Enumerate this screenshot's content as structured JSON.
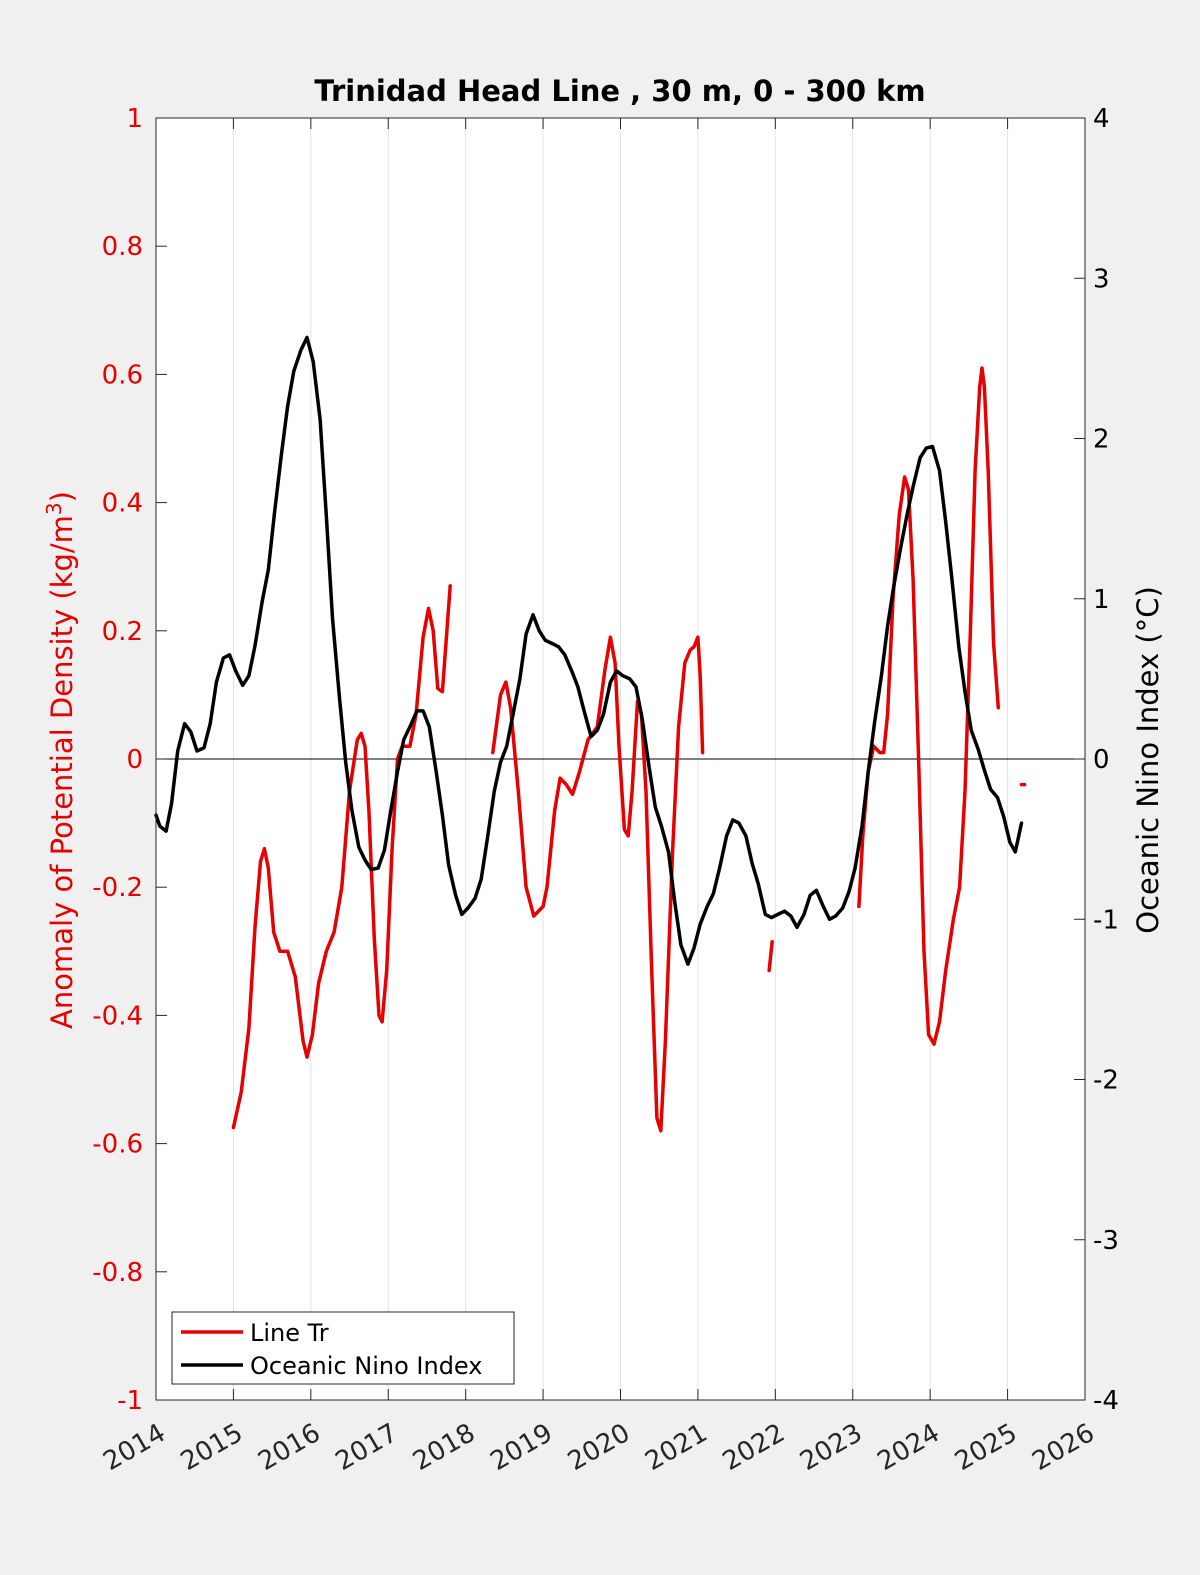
{
  "chart_data": {
    "type": "line",
    "title": "Trinidad Head Line , 30 m, 0 - 300 km",
    "xlabel": "",
    "ylabel_left": "Anomaly of Potential Density (kg/m",
    "ylabel_left_sup": "3",
    "ylabel_left_close": ")",
    "ylabel_right": "Oceanic Nino Index (°C)",
    "xlim": [
      2014,
      2026
    ],
    "ylim_left": [
      -1,
      1
    ],
    "ylim_right": [
      -4,
      4
    ],
    "x_ticks": [
      "2014",
      "2015",
      "2016",
      "2017",
      "2018",
      "2019",
      "2020",
      "2021",
      "2022",
      "2023",
      "2024",
      "2025",
      "2026"
    ],
    "y_left_ticks": [
      "1",
      "0.8",
      "0.6",
      "0.4",
      "0.2",
      "0",
      "-0.2",
      "-0.4",
      "-0.6",
      "-0.8",
      "-1"
    ],
    "y_right_ticks": [
      "4",
      "3",
      "2",
      "1",
      "0",
      "-1",
      "-2",
      "-3",
      "-4"
    ],
    "grid": "vertical",
    "legend_placement": "bottom-left",
    "colors": {
      "line_tr": "#e60000",
      "oni": "#000000",
      "left_axis": "#e60000",
      "right_axis": "#000000"
    },
    "series": [
      {
        "name": "Line Tr",
        "axis": "left",
        "segments": [
          [
            [
              2015.0,
              -0.575
            ],
            [
              2015.1,
              -0.52
            ],
            [
              2015.2,
              -0.42
            ],
            [
              2015.28,
              -0.26
            ],
            [
              2015.35,
              -0.16
            ],
            [
              2015.4,
              -0.14
            ],
            [
              2015.45,
              -0.17
            ],
            [
              2015.52,
              -0.27
            ],
            [
              2015.6,
              -0.3
            ],
            [
              2015.7,
              -0.3
            ],
            [
              2015.8,
              -0.34
            ],
            [
              2015.9,
              -0.44
            ],
            [
              2015.95,
              -0.465
            ],
            [
              2016.02,
              -0.43
            ],
            [
              2016.1,
              -0.35
            ],
            [
              2016.2,
              -0.3
            ],
            [
              2016.3,
              -0.27
            ],
            [
              2016.4,
              -0.2
            ],
            [
              2016.5,
              -0.05
            ],
            [
              2016.6,
              0.03
            ],
            [
              2016.65,
              0.04
            ],
            [
              2016.7,
              0.02
            ],
            [
              2016.75,
              -0.08
            ],
            [
              2016.82,
              -0.28
            ],
            [
              2016.88,
              -0.4
            ],
            [
              2016.92,
              -0.41
            ],
            [
              2016.98,
              -0.33
            ],
            [
              2017.05,
              -0.14
            ],
            [
              2017.12,
              0.0
            ],
            [
              2017.18,
              0.02
            ],
            [
              2017.28,
              0.02
            ],
            [
              2017.36,
              0.07
            ],
            [
              2017.45,
              0.19
            ],
            [
              2017.52,
              0.235
            ],
            [
              2017.58,
              0.2
            ],
            [
              2017.64,
              0.11
            ],
            [
              2017.7,
              0.105
            ],
            [
              2017.8,
              0.27
            ]
          ],
          [
            [
              2018.35,
              0.01
            ],
            [
              2018.45,
              0.1
            ],
            [
              2018.52,
              0.12
            ],
            [
              2018.58,
              0.08
            ],
            [
              2018.68,
              -0.05
            ],
            [
              2018.78,
              -0.2
            ],
            [
              2018.88,
              -0.245
            ],
            [
              2019.0,
              -0.23
            ],
            [
              2019.05,
              -0.2
            ],
            [
              2019.15,
              -0.08
            ],
            [
              2019.22,
              -0.03
            ],
            [
              2019.3,
              -0.04
            ],
            [
              2019.38,
              -0.055
            ],
            [
              2019.47,
              -0.02
            ],
            [
              2019.58,
              0.03
            ],
            [
              2019.7,
              0.05
            ],
            [
              2019.8,
              0.14
            ],
            [
              2019.87,
              0.19
            ],
            [
              2019.93,
              0.15
            ],
            [
              2019.98,
              0.02
            ],
            [
              2020.05,
              -0.11
            ],
            [
              2020.1,
              -0.12
            ],
            [
              2020.15,
              -0.05
            ],
            [
              2020.22,
              0.09
            ],
            [
              2020.27,
              0.07
            ],
            [
              2020.33,
              -0.05
            ],
            [
              2020.4,
              -0.32
            ],
            [
              2020.47,
              -0.56
            ],
            [
              2020.52,
              -0.58
            ],
            [
              2020.58,
              -0.44
            ],
            [
              2020.67,
              -0.15
            ],
            [
              2020.75,
              0.05
            ],
            [
              2020.83,
              0.15
            ],
            [
              2020.9,
              0.17
            ],
            [
              2020.95,
              0.175
            ],
            [
              2021.0,
              0.19
            ],
            [
              2021.03,
              0.13
            ],
            [
              2021.06,
              0.01
            ]
          ],
          [
            [
              2021.92,
              -0.33
            ],
            [
              2021.96,
              -0.285
            ]
          ],
          [
            [
              2023.08,
              -0.23
            ],
            [
              2023.13,
              -0.12
            ],
            [
              2023.2,
              -0.02
            ],
            [
              2023.27,
              0.02
            ],
            [
              2023.35,
              0.01
            ],
            [
              2023.4,
              0.01
            ],
            [
              2023.45,
              0.07
            ],
            [
              2023.52,
              0.25
            ],
            [
              2023.6,
              0.38
            ],
            [
              2023.67,
              0.44
            ],
            [
              2023.72,
              0.42
            ],
            [
              2023.78,
              0.28
            ],
            [
              2023.85,
              0.0
            ],
            [
              2023.92,
              -0.3
            ],
            [
              2023.98,
              -0.43
            ],
            [
              2024.05,
              -0.445
            ],
            [
              2024.12,
              -0.41
            ],
            [
              2024.2,
              -0.33
            ],
            [
              2024.3,
              -0.25
            ],
            [
              2024.38,
              -0.2
            ],
            [
              2024.45,
              -0.05
            ],
            [
              2024.52,
              0.2
            ],
            [
              2024.58,
              0.45
            ],
            [
              2024.64,
              0.58
            ],
            [
              2024.67,
              0.61
            ],
            [
              2024.7,
              0.58
            ],
            [
              2024.75,
              0.45
            ],
            [
              2024.82,
              0.18
            ],
            [
              2024.88,
              0.08
            ]
          ],
          [
            [
              2025.18,
              -0.04
            ],
            [
              2025.22,
              -0.04
            ]
          ]
        ]
      },
      {
        "name": "Oceanic Nino Index",
        "axis": "right",
        "segments": [
          [
            [
              2014.0,
              -0.35
            ],
            [
              2014.05,
              -0.42
            ],
            [
              2014.13,
              -0.45
            ],
            [
              2014.2,
              -0.28
            ],
            [
              2014.28,
              0.05
            ],
            [
              2014.37,
              0.22
            ],
            [
              2014.45,
              0.17
            ],
            [
              2014.53,
              0.05
            ],
            [
              2014.62,
              0.07
            ],
            [
              2014.7,
              0.22
            ],
            [
              2014.78,
              0.48
            ],
            [
              2014.87,
              0.63
            ],
            [
              2014.95,
              0.65
            ],
            [
              2015.03,
              0.55
            ],
            [
              2015.12,
              0.46
            ],
            [
              2015.2,
              0.52
            ],
            [
              2015.28,
              0.71
            ],
            [
              2015.37,
              0.98
            ],
            [
              2015.45,
              1.18
            ],
            [
              2015.53,
              1.53
            ],
            [
              2015.62,
              1.9
            ],
            [
              2015.7,
              2.2
            ],
            [
              2015.78,
              2.42
            ],
            [
              2015.87,
              2.55
            ],
            [
              2015.95,
              2.63
            ],
            [
              2016.03,
              2.48
            ],
            [
              2016.12,
              2.12
            ],
            [
              2016.2,
              1.52
            ],
            [
              2016.28,
              0.88
            ],
            [
              2016.37,
              0.38
            ],
            [
              2016.45,
              -0.02
            ],
            [
              2016.53,
              -0.32
            ],
            [
              2016.62,
              -0.55
            ],
            [
              2016.7,
              -0.63
            ],
            [
              2016.78,
              -0.69
            ],
            [
              2016.87,
              -0.68
            ],
            [
              2016.95,
              -0.57
            ],
            [
              2017.03,
              -0.33
            ],
            [
              2017.12,
              -0.08
            ],
            [
              2017.2,
              0.12
            ],
            [
              2017.28,
              0.2
            ],
            [
              2017.37,
              0.3
            ],
            [
              2017.45,
              0.3
            ],
            [
              2017.53,
              0.2
            ],
            [
              2017.62,
              -0.08
            ],
            [
              2017.7,
              -0.35
            ],
            [
              2017.78,
              -0.66
            ],
            [
              2017.87,
              -0.85
            ],
            [
              2017.95,
              -0.97
            ],
            [
              2018.03,
              -0.93
            ],
            [
              2018.12,
              -0.87
            ],
            [
              2018.2,
              -0.75
            ],
            [
              2018.28,
              -0.5
            ],
            [
              2018.37,
              -0.2
            ],
            [
              2018.45,
              -0.02
            ],
            [
              2018.53,
              0.08
            ],
            [
              2018.62,
              0.3
            ],
            [
              2018.7,
              0.5
            ],
            [
              2018.78,
              0.78
            ],
            [
              2018.87,
              0.9
            ],
            [
              2018.95,
              0.8
            ],
            [
              2019.03,
              0.74
            ],
            [
              2019.12,
              0.72
            ],
            [
              2019.2,
              0.7
            ],
            [
              2019.28,
              0.65
            ],
            [
              2019.37,
              0.55
            ],
            [
              2019.45,
              0.45
            ],
            [
              2019.53,
              0.3
            ],
            [
              2019.62,
              0.14
            ],
            [
              2019.7,
              0.18
            ],
            [
              2019.78,
              0.28
            ],
            [
              2019.87,
              0.48
            ],
            [
              2019.95,
              0.55
            ],
            [
              2020.03,
              0.52
            ],
            [
              2020.12,
              0.5
            ],
            [
              2020.2,
              0.45
            ],
            [
              2020.28,
              0.25
            ],
            [
              2020.37,
              -0.05
            ],
            [
              2020.45,
              -0.3
            ],
            [
              2020.53,
              -0.42
            ],
            [
              2020.62,
              -0.58
            ],
            [
              2020.7,
              -0.89
            ],
            [
              2020.78,
              -1.16
            ],
            [
              2020.87,
              -1.28
            ],
            [
              2020.95,
              -1.18
            ],
            [
              2021.03,
              -1.03
            ],
            [
              2021.12,
              -0.92
            ],
            [
              2021.2,
              -0.84
            ],
            [
              2021.28,
              -0.68
            ],
            [
              2021.37,
              -0.48
            ],
            [
              2021.45,
              -0.38
            ],
            [
              2021.53,
              -0.4
            ],
            [
              2021.62,
              -0.48
            ],
            [
              2021.7,
              -0.65
            ],
            [
              2021.78,
              -0.78
            ],
            [
              2021.87,
              -0.97
            ],
            [
              2021.95,
              -0.99
            ],
            [
              2022.03,
              -0.97
            ],
            [
              2022.12,
              -0.95
            ],
            [
              2022.2,
              -0.98
            ],
            [
              2022.28,
              -1.05
            ],
            [
              2022.37,
              -0.97
            ],
            [
              2022.45,
              -0.85
            ],
            [
              2022.53,
              -0.82
            ],
            [
              2022.62,
              -0.92
            ],
            [
              2022.7,
              -1.0
            ],
            [
              2022.78,
              -0.98
            ],
            [
              2022.87,
              -0.93
            ],
            [
              2022.95,
              -0.83
            ],
            [
              2023.03,
              -0.68
            ],
            [
              2023.12,
              -0.42
            ],
            [
              2023.2,
              -0.08
            ],
            [
              2023.28,
              0.22
            ],
            [
              2023.37,
              0.52
            ],
            [
              2023.45,
              0.83
            ],
            [
              2023.53,
              1.08
            ],
            [
              2023.62,
              1.32
            ],
            [
              2023.7,
              1.52
            ],
            [
              2023.78,
              1.7
            ],
            [
              2023.87,
              1.88
            ],
            [
              2023.95,
              1.94
            ],
            [
              2024.03,
              1.95
            ],
            [
              2024.12,
              1.8
            ],
            [
              2024.2,
              1.48
            ],
            [
              2024.28,
              1.13
            ],
            [
              2024.37,
              0.7
            ],
            [
              2024.45,
              0.42
            ],
            [
              2024.53,
              0.18
            ],
            [
              2024.62,
              0.06
            ],
            [
              2024.7,
              -0.07
            ],
            [
              2024.78,
              -0.19
            ],
            [
              2024.87,
              -0.24
            ],
            [
              2024.95,
              -0.36
            ],
            [
              2025.03,
              -0.52
            ],
            [
              2025.1,
              -0.58
            ],
            [
              2025.18,
              -0.4
            ]
          ]
        ]
      }
    ]
  }
}
